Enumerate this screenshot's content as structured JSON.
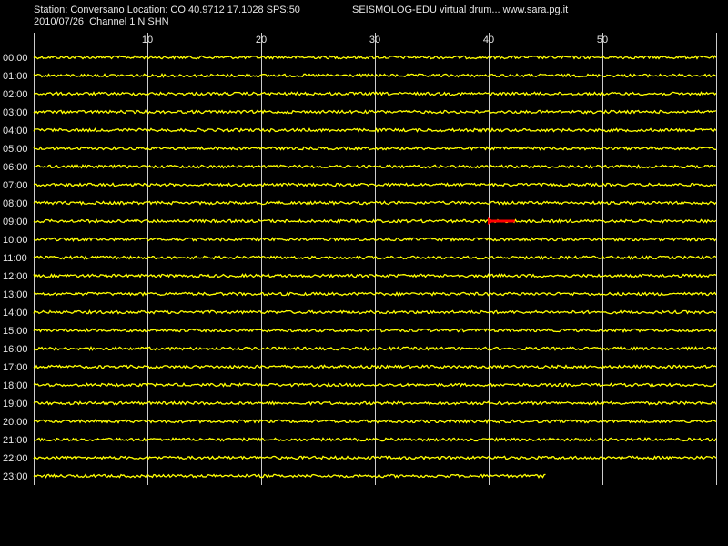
{
  "header": {
    "station_line": "Station: Conversano Location: CO 40.9712 17.1028 SPS:50",
    "date_channel_line": "2010/07/26  Channel 1 N SHN",
    "brand_line": "SEISMOLOG-EDU virtual drum... www.sara.pg.it"
  },
  "colors": {
    "background": "#000000",
    "trace": "#ffff00",
    "event_marker": "#ff0000",
    "grid": "#ffffff",
    "text": "#e6e6e6"
  },
  "chart_data": {
    "type": "line",
    "title": "",
    "xlabel": "",
    "ylabel": "",
    "xlim": [
      0,
      60
    ],
    "x_ticks": [
      10,
      20,
      30,
      40,
      50
    ],
    "grid": true,
    "row_labels": [
      "00:00",
      "01:00",
      "02:00",
      "03:00",
      "04:00",
      "05:00",
      "06:00",
      "07:00",
      "08:00",
      "09:00",
      "10:00",
      "11:00",
      "12:00",
      "13:00",
      "14:00",
      "15:00",
      "16:00",
      "17:00",
      "18:00",
      "19:00",
      "20:00",
      "21:00",
      "22:00",
      "23:00"
    ],
    "last_row_end_minute": 45,
    "events": [
      {
        "row": "09:00",
        "start_minute": 40,
        "end_minute": 42.3,
        "color": "#ff0000"
      }
    ]
  }
}
